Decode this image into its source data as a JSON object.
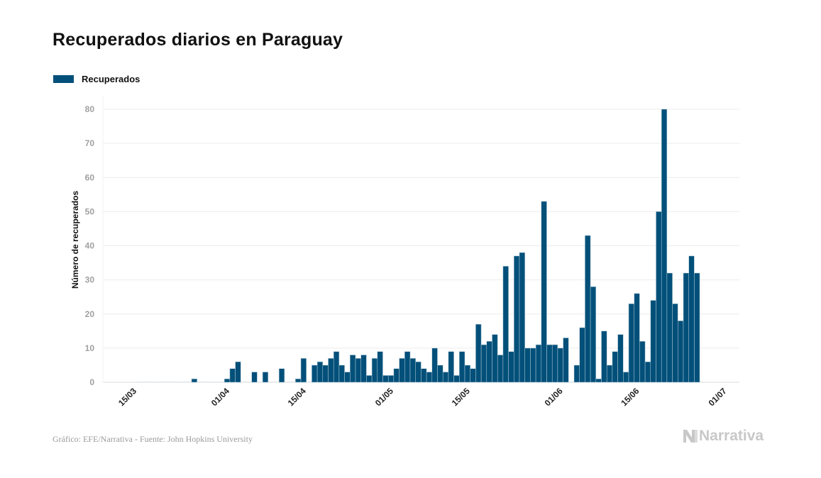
{
  "title": "Recuperados diarios en Paraguay",
  "source": "Gráfico: EFE/Narrativa - Fuente: John Hopkins University",
  "logo_text": "Narrativa",
  "colors": {
    "bar": "#02507a",
    "grid": "#ececec",
    "zero": "#dfe6ea"
  },
  "chart_data": {
    "type": "bar",
    "title": "Recuperados diarios en Paraguay",
    "xlabel": "",
    "ylabel": "Número de recuperados",
    "ylim": [
      0,
      80
    ],
    "yticks": [
      0,
      10,
      20,
      30,
      40,
      50,
      60,
      70,
      80
    ],
    "xticks": [
      "15/03",
      "01/04",
      "15/04",
      "01/05",
      "15/05",
      "01/06",
      "15/06",
      "01/07"
    ],
    "grid": true,
    "legend": "top-left",
    "series": [
      {
        "name": "Recuperados",
        "color": "#02507a",
        "categories": [
          "15/03",
          "16/03",
          "17/03",
          "18/03",
          "19/03",
          "20/03",
          "21/03",
          "22/03",
          "23/03",
          "24/03",
          "25/03",
          "26/03",
          "27/03",
          "28/03",
          "29/03",
          "30/03",
          "31/03",
          "01/04",
          "02/04",
          "03/04",
          "04/04",
          "05/04",
          "06/04",
          "07/04",
          "08/04",
          "09/04",
          "10/04",
          "11/04",
          "12/04",
          "13/04",
          "14/04",
          "15/04",
          "16/04",
          "17/04",
          "18/04",
          "19/04",
          "20/04",
          "21/04",
          "22/04",
          "23/04",
          "24/04",
          "25/04",
          "26/04",
          "27/04",
          "28/04",
          "29/04",
          "30/04",
          "01/05",
          "02/05",
          "03/05",
          "04/05",
          "05/05",
          "06/05",
          "07/05",
          "08/05",
          "09/05",
          "10/05",
          "11/05",
          "12/05",
          "13/05",
          "14/05",
          "15/05",
          "16/05",
          "17/05",
          "18/05",
          "19/05",
          "20/05",
          "21/05",
          "22/05",
          "23/05",
          "24/05",
          "25/05",
          "26/05",
          "27/05",
          "28/05",
          "29/05",
          "30/05",
          "31/05",
          "01/06",
          "02/06",
          "03/06",
          "04/06",
          "05/06",
          "06/06",
          "07/06",
          "08/06",
          "09/06",
          "10/06",
          "11/06",
          "12/06",
          "13/06",
          "14/06",
          "15/06",
          "16/06",
          "17/06",
          "18/06",
          "19/06",
          "20/06",
          "21/06",
          "22/06",
          "23/06",
          "24/06",
          "25/06",
          "26/06"
        ],
        "values": [
          0,
          0,
          0,
          0,
          0,
          0,
          0,
          0,
          0,
          0,
          1,
          0,
          0,
          0,
          0,
          0,
          1,
          4,
          6,
          0,
          0,
          3,
          0,
          3,
          0,
          0,
          4,
          0,
          0,
          1,
          7,
          0,
          5,
          6,
          5,
          7,
          9,
          5,
          3,
          8,
          7,
          8,
          2,
          7,
          9,
          2,
          2,
          4,
          7,
          9,
          7,
          6,
          4,
          3,
          10,
          5,
          3,
          9,
          2,
          9,
          5,
          4,
          17,
          11,
          12,
          14,
          8,
          34,
          9,
          37,
          38,
          10,
          10,
          11,
          53,
          11,
          11,
          10,
          13,
          0,
          5,
          16,
          43,
          28,
          1,
          15,
          5,
          9,
          14,
          3,
          23,
          26,
          12,
          6,
          24,
          50,
          80,
          32,
          23,
          18,
          32,
          37,
          32,
          0
        ]
      }
    ]
  }
}
